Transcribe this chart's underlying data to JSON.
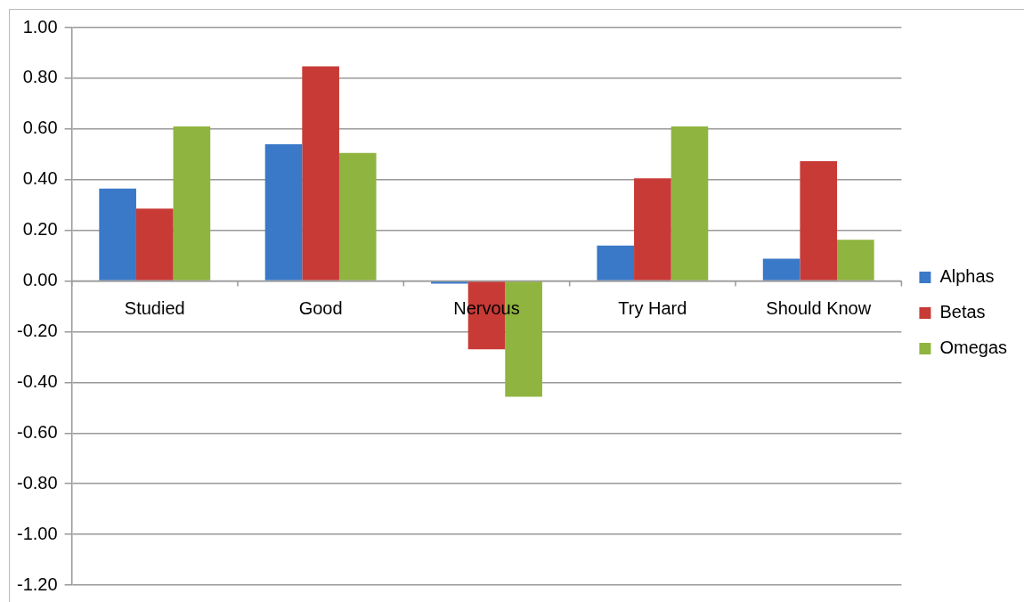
{
  "chart_data": {
    "type": "bar",
    "categories": [
      "Studied",
      "Good",
      "Nervous",
      "Try Hard",
      "Should Know"
    ],
    "series": [
      {
        "name": "Alphas",
        "color": "#3a78c8",
        "values": [
          0.365,
          0.54,
          -0.01,
          0.14,
          0.088
        ]
      },
      {
        "name": "Betas",
        "color": "#c83a36",
        "values": [
          0.286,
          0.847,
          -0.27,
          0.405,
          0.473
        ]
      },
      {
        "name": "Omegas",
        "color": "#8fb43f",
        "values": [
          0.61,
          0.505,
          -0.457,
          0.61,
          0.163
        ]
      }
    ],
    "ylim": [
      -1.2,
      1.0
    ],
    "yticks": [
      {
        "value": -1.2,
        "label": "-1.20"
      },
      {
        "value": -1.0,
        "label": "-1.00"
      },
      {
        "value": -0.8,
        "label": "-0.80"
      },
      {
        "value": -0.6,
        "label": "-0.60"
      },
      {
        "value": -0.4,
        "label": "-0.40"
      },
      {
        "value": -0.2,
        "label": "-0.20"
      },
      {
        "value": 0,
        "label": "0.00"
      },
      {
        "value": 0.2,
        "label": "0.20"
      },
      {
        "value": 0.4,
        "label": "0.40"
      },
      {
        "value": 0.6,
        "label": "0.60"
      },
      {
        "value": 0.8,
        "label": "0.80"
      },
      {
        "value": 1.0,
        "label": "1.00"
      }
    ],
    "grid": "y",
    "legend": "right"
  }
}
